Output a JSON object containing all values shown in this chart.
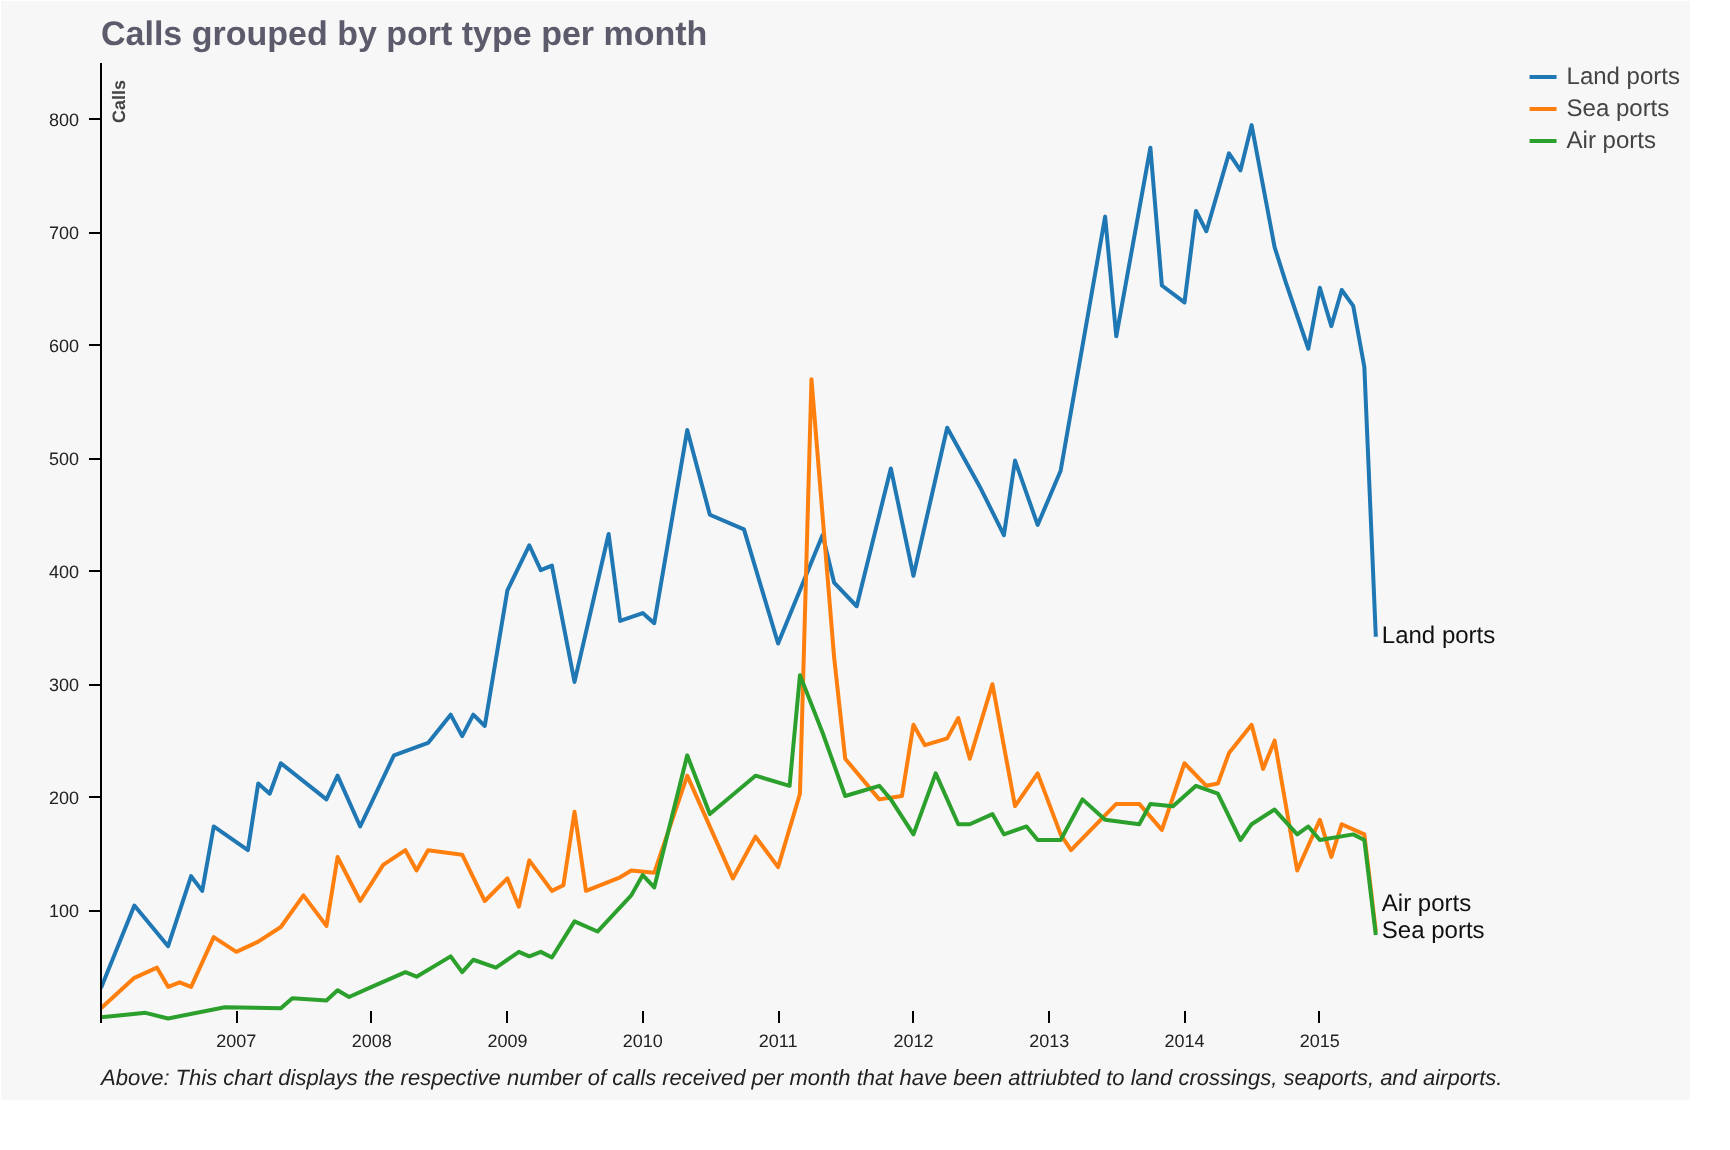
{
  "chart_data": {
    "type": "line",
    "title": "Calls grouped by port type per month",
    "ylabel": "Calls",
    "annotations": [
      "Above: This chart displays the respective number of calls received per month that have been attriubted to land crossings, seaports, and airports."
    ],
    "xlim": [
      "2006-01",
      "2017-09"
    ],
    "ylim": [
      0,
      850
    ],
    "xticks": [
      {
        "value": "2007",
        "label": "2007"
      },
      {
        "value": "2008",
        "label": "2008"
      },
      {
        "value": "2009",
        "label": "2009"
      },
      {
        "value": "2010",
        "label": "2010"
      },
      {
        "value": "2011",
        "label": "2011"
      },
      {
        "value": "2012",
        "label": "2012"
      },
      {
        "value": "2013",
        "label": "2013"
      },
      {
        "value": "2014",
        "label": "2014"
      },
      {
        "value": "2015",
        "label": "2015"
      }
    ],
    "yticks": [
      100,
      200,
      300,
      400,
      500,
      600,
      700,
      800
    ],
    "grid": false,
    "legend": "top right",
    "line_style": "solid",
    "series": [
      {
        "name": "Land ports",
        "color": "#1f77b4",
        "x": [
          "2006-01",
          "2006-04",
          "2006-07",
          "2006-09",
          "2006-10",
          "2006-11",
          "2007-02",
          "2007-03",
          "2007-04",
          "2007-05",
          "2007-09",
          "2007-10",
          "2007-12",
          "2008-03",
          "2008-06",
          "2008-08",
          "2008-09",
          "2008-10",
          "2008-11",
          "2009-01",
          "2009-03",
          "2009-04",
          "2009-05",
          "2009-07",
          "2009-10",
          "2009-11",
          "2010-01",
          "2010-02",
          "2010-05",
          "2010-07",
          "2010-10",
          "2011-01",
          "2011-05",
          "2011-06",
          "2011-08",
          "2011-11",
          "2012-01",
          "2012-04",
          "2012-07",
          "2012-09",
          "2012-10",
          "2012-12",
          "2013-02",
          "2013-06",
          "2013-07",
          "2013-10",
          "2013-11",
          "2014-01",
          "2014-02",
          "2014-03",
          "2014-05",
          "2014-06",
          "2014-07",
          "2014-09",
          "2014-10",
          "2014-12",
          "2015-01",
          "2015-02",
          "2015-03",
          "2015-04",
          "2015-05",
          "2015-06"
        ],
        "values": [
          31,
          104,
          68,
          130,
          117,
          174,
          153,
          212,
          203,
          230,
          198,
          219,
          174,
          237,
          248,
          273,
          254,
          273,
          263,
          383,
          423,
          401,
          405,
          302,
          433,
          356,
          363,
          354,
          525,
          450,
          437,
          336,
          432,
          390,
          369,
          491,
          396,
          527,
          473,
          432,
          498,
          441,
          489,
          714,
          608,
          775,
          653,
          638,
          719,
          701,
          770,
          755,
          795,
          687,
          656,
          597,
          651,
          617,
          649,
          635,
          581,
          342
        ]
      },
      {
        "name": "Sea ports",
        "color": "#ff7f0e",
        "x": [
          "2006-01",
          "2006-04",
          "2006-06",
          "2006-07",
          "2006-08",
          "2006-09",
          "2006-11",
          "2007-01",
          "2007-03",
          "2007-05",
          "2007-07",
          "2007-09",
          "2007-10",
          "2007-12",
          "2008-02",
          "2008-04",
          "2008-05",
          "2008-06",
          "2008-09",
          "2008-11",
          "2009-01",
          "2009-02",
          "2009-03",
          "2009-05",
          "2009-06",
          "2009-07",
          "2009-08",
          "2009-11",
          "2009-12",
          "2010-02",
          "2010-05",
          "2010-09",
          "2010-11",
          "2011-01",
          "2011-03",
          "2011-04",
          "2011-06",
          "2011-07",
          "2011-10",
          "2011-12",
          "2012-01",
          "2012-02",
          "2012-04",
          "2012-05",
          "2012-06",
          "2012-08",
          "2012-10",
          "2012-12",
          "2013-02",
          "2013-03",
          "2013-07",
          "2013-09",
          "2013-11",
          "2014-01",
          "2014-03",
          "2014-04",
          "2014-05",
          "2014-07",
          "2014-08",
          "2014-09",
          "2014-11",
          "2015-01",
          "2015-02",
          "2015-03",
          "2015-05",
          "2015-06"
        ],
        "values": [
          13,
          40,
          49,
          32,
          36,
          32,
          76,
          63,
          72,
          85,
          113,
          86,
          147,
          108,
          140,
          153,
          135,
          153,
          149,
          108,
          128,
          103,
          144,
          117,
          122,
          187,
          117,
          129,
          135,
          133,
          219,
          128,
          165,
          138,
          203,
          570,
          324,
          234,
          198,
          201,
          264,
          246,
          252,
          270,
          234,
          300,
          192,
          221,
          167,
          153,
          194,
          194,
          171,
          230,
          210,
          212,
          239,
          264,
          225,
          250,
          135,
          180,
          147,
          176,
          167,
          81
        ]
      },
      {
        "name": "Air ports",
        "color": "#2ca02c",
        "x": [
          "2006-01",
          "2006-05",
          "2006-07",
          "2006-12",
          "2007-05",
          "2007-06",
          "2007-09",
          "2007-10",
          "2007-11",
          "2008-01",
          "2008-04",
          "2008-05",
          "2008-08",
          "2008-09",
          "2008-10",
          "2008-12",
          "2009-02",
          "2009-03",
          "2009-04",
          "2009-05",
          "2009-07",
          "2009-09",
          "2009-12",
          "2010-01",
          "2010-02",
          "2010-05",
          "2010-07",
          "2010-11",
          "2011-02",
          "2011-03",
          "2011-05",
          "2011-07",
          "2011-10",
          "2011-11",
          "2012-01",
          "2012-03",
          "2012-05",
          "2012-06",
          "2012-08",
          "2012-09",
          "2012-11",
          "2012-12",
          "2013-02",
          "2013-04",
          "2013-06",
          "2013-09",
          "2013-10",
          "2013-12",
          "2014-02",
          "2014-04",
          "2014-06",
          "2014-07",
          "2014-09",
          "2014-11",
          "2014-12",
          "2015-01",
          "2015-04",
          "2015-05",
          "2015-06"
        ],
        "values": [
          5,
          9,
          4,
          14,
          13,
          22,
          20,
          29,
          23,
          32,
          45,
          41,
          59,
          45,
          56,
          49,
          63,
          59,
          63,
          58,
          90,
          81,
          113,
          131,
          120,
          237,
          185,
          219,
          210,
          308,
          257,
          201,
          210,
          198,
          167,
          221,
          176,
          176,
          185,
          167,
          174,
          162,
          162,
          198,
          180,
          176,
          194,
          192,
          210,
          203,
          162,
          176,
          189,
          167,
          174,
          162,
          167,
          162,
          78
        ]
      }
    ]
  }
}
